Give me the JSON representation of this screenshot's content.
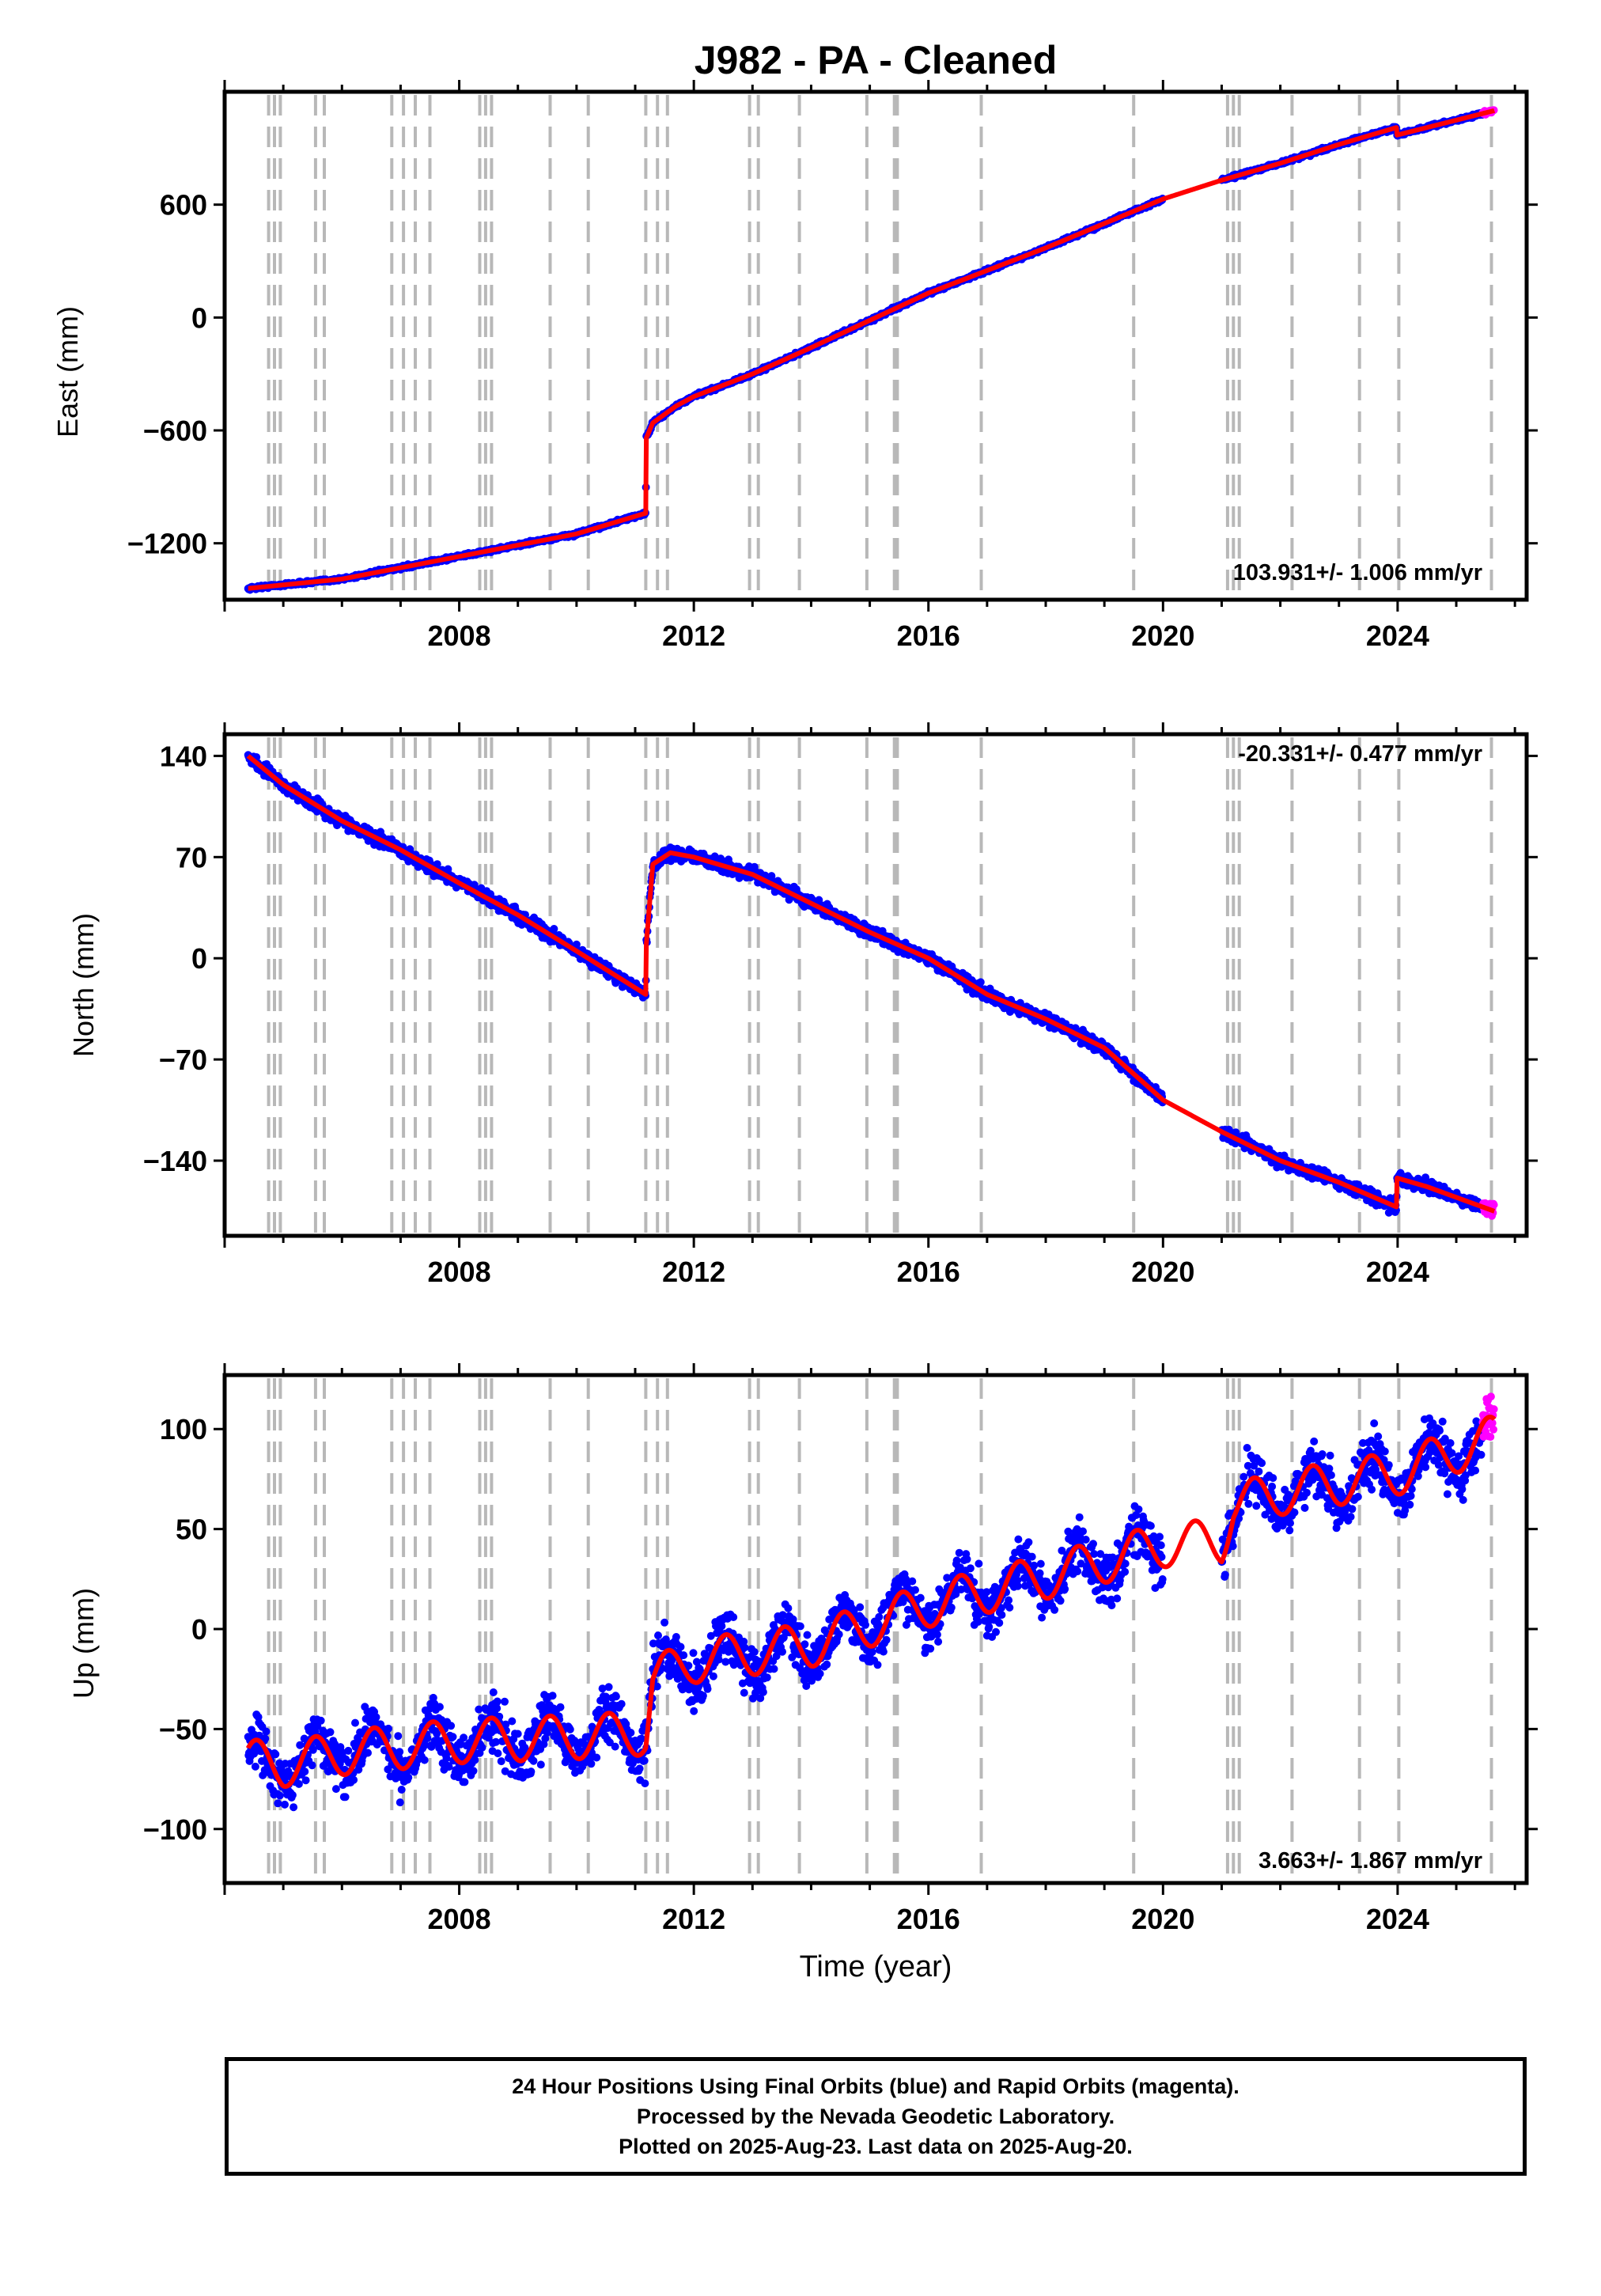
{
  "title": "J982  - PA - Cleaned",
  "xlabel": "Time (year)",
  "caption": {
    "line1": "24 Hour Positions Using Final Orbits (blue) and Rapid Orbits (magenta).",
    "line2": "Processed by the Nevada Geodetic Laboratory.",
    "line3": "Plotted on 2025-Aug-23. Last data on 2025-Aug-20."
  },
  "colors": {
    "final": "#0000ff",
    "rapid": "#ff00ff",
    "model": "#ff0000",
    "event_lines": "#b8b8b8"
  },
  "chart_data": [
    {
      "type": "scatter",
      "ylabel": "East (mm)",
      "xlim": [
        2004.0,
        2026.2
      ],
      "ylim": [
        -1500,
        1200
      ],
      "xticks": [
        2008,
        2012,
        2016,
        2020,
        2024
      ],
      "yticks": [
        -1200,
        -600,
        0,
        600
      ],
      "ytick_labels": [
        "−1200",
        "−600",
        "0",
        "600"
      ],
      "rate_label": "103.931+/- 1.006 mm/yr",
      "rate_position": "bottom-right",
      "gaps": [
        [
          2020.0,
          2021.0
        ]
      ],
      "rapid_start": 2025.45,
      "noise": 6,
      "x": [
        2004.4,
        2006.0,
        2008.0,
        2010.0,
        2011.18,
        2011.19,
        2011.3,
        2011.7,
        2012.0,
        2013.0,
        2014.0,
        2016.0,
        2018.0,
        2020.0,
        2021.0,
        2022.0,
        2023.0,
        2023.98,
        2023.99,
        2024.5,
        2025.65
      ],
      "y": [
        -1440,
        -1390,
        -1270,
        -1150,
        -1040,
        -640,
        -560,
        -470,
        -420,
        -300,
        -160,
        130,
        370,
        630,
        730,
        820,
        920,
        1010,
        970,
        1010,
        1100
      ]
    },
    {
      "type": "scatter",
      "ylabel": "North (mm)",
      "xlim": [
        2004.0,
        2026.2
      ],
      "ylim": [
        -192,
        155
      ],
      "xticks": [
        2008,
        2012,
        2016,
        2020,
        2024
      ],
      "yticks": [
        -140,
        -70,
        0,
        70,
        140
      ],
      "ytick_labels": [
        "−140",
        "−70",
        "0",
        "70",
        "140"
      ],
      "rate_label": "-20.331+/- 0.477 mm/yr",
      "rate_position": "top-right",
      "gaps": [
        [
          2020.0,
          2021.0
        ]
      ],
      "rapid_start": 2025.45,
      "noise": 3,
      "x": [
        2004.4,
        2005.0,
        2006.0,
        2007.0,
        2008.0,
        2009.0,
        2010.0,
        2011.18,
        2011.19,
        2011.3,
        2011.6,
        2012.0,
        2013.0,
        2014.0,
        2015.0,
        2016.0,
        2017.0,
        2018.0,
        2019.0,
        2020.0,
        2021.0,
        2022.0,
        2023.0,
        2023.98,
        2023.99,
        2024.5,
        2025.65
      ],
      "y": [
        140,
        120,
        95,
        75,
        52,
        30,
        5,
        -25,
        10,
        65,
        73,
        70,
        58,
        38,
        18,
        0,
        -25,
        -42,
        -62,
        -98,
        -120,
        -140,
        -155,
        -172,
        -152,
        -158,
        -175
      ]
    },
    {
      "type": "scatter",
      "ylabel": "Up (mm)",
      "xlim": [
        2004.0,
        2026.2
      ],
      "ylim": [
        -127,
        127
      ],
      "xticks": [
        2008,
        2012,
        2016,
        2020,
        2024
      ],
      "yticks": [
        -100,
        -50,
        0,
        50,
        100
      ],
      "ytick_labels": [
        "−100",
        "−50",
        "0",
        "50",
        "100"
      ],
      "rate_label": "3.663+/- 1.867 mm/yr",
      "rate_position": "bottom-right",
      "gaps": [
        [
          2020.0,
          2021.0
        ]
      ],
      "rapid_start": 2025.45,
      "noise": 9,
      "seasonal_amplitude": 11,
      "x": [
        2004.4,
        2005.0,
        2006.0,
        2008.0,
        2010.0,
        2011.18,
        2011.3,
        2012.0,
        2014.0,
        2016.0,
        2018.0,
        2020.0,
        2021.0,
        2021.2,
        2022.0,
        2024.0,
        2025.65
      ],
      "y": [
        -66,
        -68,
        -62,
        -56,
        -54,
        -52,
        -25,
        -16,
        -8,
        12,
        26,
        42,
        44,
        62,
        68,
        78,
        96
      ]
    }
  ],
  "event_lines": [
    2004.75,
    2004.85,
    2004.95,
    2005.55,
    2005.7,
    2006.85,
    2007.05,
    2007.25,
    2007.5,
    2008.35,
    2008.45,
    2008.55,
    2009.55,
    2010.2,
    2011.18,
    2011.38,
    2011.55,
    2012.95,
    2013.1,
    2013.8,
    2014.95,
    2015.42,
    2015.47,
    2016.9,
    2019.5,
    2021.1,
    2021.2,
    2021.3,
    2022.2,
    2023.35,
    2024.02,
    2025.6
  ]
}
